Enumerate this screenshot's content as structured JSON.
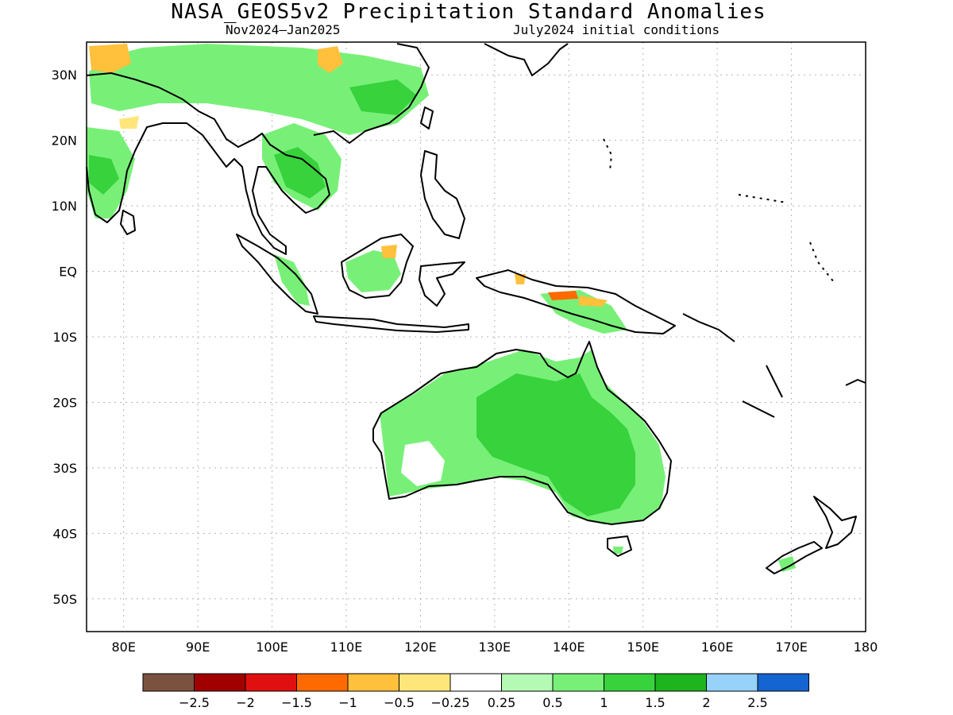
{
  "header": {
    "title": "NASA_GEOS5v2 Precipitation Standard Anomalies",
    "period": "Nov2024–Jan2025",
    "initial_conditions": "July2024 initial conditions"
  },
  "map": {
    "lon_min": 75,
    "lon_max": 180,
    "lat_min": -55,
    "lat_max": 35,
    "lat_ticks": [
      {
        "lat": 30,
        "label": "30N"
      },
      {
        "lat": 20,
        "label": "20N"
      },
      {
        "lat": 10,
        "label": "10N"
      },
      {
        "lat": 0,
        "label": "EQ"
      },
      {
        "lat": -10,
        "label": "10S"
      },
      {
        "lat": -20,
        "label": "20S"
      },
      {
        "lat": -30,
        "label": "30S"
      },
      {
        "lat": -40,
        "label": "40S"
      },
      {
        "lat": -50,
        "label": "50S"
      }
    ],
    "lon_ticks": [
      {
        "lon": 80,
        "label": "80E"
      },
      {
        "lon": 90,
        "label": "90E"
      },
      {
        "lon": 100,
        "label": "100E"
      },
      {
        "lon": 110,
        "label": "110E"
      },
      {
        "lon": 120,
        "label": "120E"
      },
      {
        "lon": 130,
        "label": "130E"
      },
      {
        "lon": 140,
        "label": "140E"
      },
      {
        "lon": 150,
        "label": "150E"
      },
      {
        "lon": 160,
        "label": "160E"
      },
      {
        "lon": 170,
        "label": "170E"
      },
      {
        "lon": 180,
        "label": "180"
      }
    ],
    "gridlines": true
  },
  "colorbar": {
    "colors": [
      "#7b5140",
      "#a00000",
      "#e01010",
      "#ff6a00",
      "#ffc03c",
      "#ffe67a",
      "#ffffff",
      "#b4fab4",
      "#78f078",
      "#37d23c",
      "#1eb41e",
      "#96d2fa",
      "#1464d2"
    ],
    "labels": [
      "−2.5",
      "−2",
      "−1.5",
      "−1",
      "−0.5",
      "−0.25",
      "0.25",
      "0.5",
      "1",
      "1.5",
      "2",
      "2.5"
    ]
  }
}
